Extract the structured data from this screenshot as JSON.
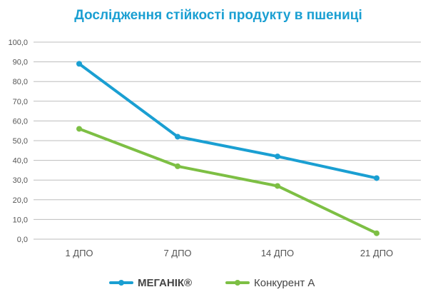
{
  "chart_data": {
    "type": "line",
    "title": "Дослідження стійкості продукту в пшениці",
    "xlabel": "",
    "ylabel": "",
    "categories": [
      "1 ДПО",
      "7 ДПО",
      "14 ДПО",
      "21 ДПО"
    ],
    "y_ticks": [
      "0,0",
      "10,0",
      "20,0",
      "30,0",
      "40,0",
      "50,0",
      "60,0",
      "70,0",
      "80,0",
      "90,0",
      "100,0"
    ],
    "ylim": [
      0,
      100
    ],
    "grid": true,
    "legend_position": "bottom",
    "series": [
      {
        "name": "МЕГАНІК®",
        "values": [
          89,
          52,
          42,
          31
        ],
        "color": "#1a9fd2"
      },
      {
        "name": "Конкурент А",
        "values": [
          56,
          37,
          27,
          3
        ],
        "color": "#7dbf44"
      }
    ]
  },
  "colors": {
    "title": "#1a9fd2",
    "grid": "#bdbdbd",
    "axis_text": "#555555",
    "legend_text": "#444444"
  }
}
